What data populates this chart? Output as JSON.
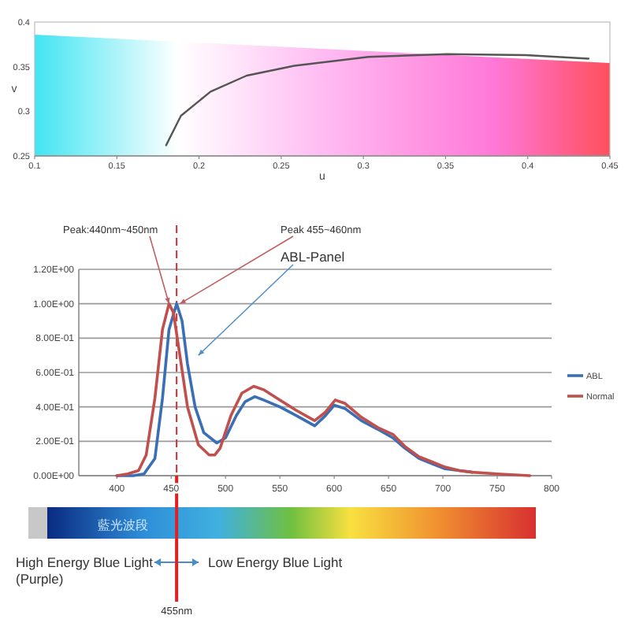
{
  "chart_data": [
    {
      "type": "line",
      "xlabel": "u",
      "ylabel": "v",
      "xlim": [
        0.1,
        0.45
      ],
      "ylim": [
        0.25,
        0.4
      ],
      "xticks": [
        0.1,
        0.15,
        0.2,
        0.25,
        0.3,
        0.35,
        0.4,
        0.45
      ],
      "yticks": [
        0.25,
        0.3,
        0.35,
        0.4
      ],
      "series": [
        {
          "color": "#555555",
          "x": [
            0.18,
            0.189,
            0.207,
            0.229,
            0.258,
            0.303,
            0.351,
            0.399,
            0.437
          ],
          "values": [
            0.262,
            0.295,
            0.322,
            0.34,
            0.351,
            0.361,
            0.364,
            0.363,
            0.359
          ]
        }
      ]
    },
    {
      "type": "line",
      "xlim": [
        365,
        800
      ],
      "ylim": [
        0,
        1.2
      ],
      "xticks": [
        400,
        450,
        500,
        550,
        600,
        650,
        700,
        750,
        800
      ],
      "yticks": [
        {
          "value": 0,
          "label": "0.00E+00"
        },
        {
          "value": 0.2,
          "label": "2.00E-01"
        },
        {
          "value": 0.4,
          "label": "4.00E-01"
        },
        {
          "value": 0.6,
          "label": "6.00E-01"
        },
        {
          "value": 0.8,
          "label": "8.00E-01"
        },
        {
          "value": 1,
          "label": "1.00E+00"
        },
        {
          "value": 1.2,
          "label": "1.20E+00"
        }
      ],
      "grid": "y",
      "legend": "right",
      "line_style": "solid",
      "ref_lines": [
        {
          "axis": "x",
          "value": 455,
          "color": "#d03030",
          "line_style": "dashed"
        }
      ],
      "annotations": [
        {
          "text": "Peak:440nm~450nm",
          "x": 448,
          "y": 1.0
        },
        {
          "text": "Peak 455~460nm",
          "x": 458,
          "y": 1.0
        },
        {
          "text": "ABL-Panel",
          "x": 475,
          "y": 0.7
        },
        "藍光波段",
        "High Energy Blue Light\n(Purple)",
        "Low Energy Blue Light",
        "455nm"
      ],
      "series": [
        {
          "name": "ABL",
          "color": "#3a6fb5",
          "x": [
            400,
            415,
            425,
            435,
            442,
            448,
            455,
            460,
            465,
            472,
            480,
            492,
            500,
            510,
            518,
            527,
            535,
            550,
            565,
            582,
            592,
            600,
            610,
            625,
            640,
            654,
            665,
            678,
            690,
            702,
            715,
            727
          ],
          "values": [
            0,
            0,
            0.01,
            0.1,
            0.45,
            0.85,
            1.0,
            0.9,
            0.65,
            0.4,
            0.25,
            0.19,
            0.22,
            0.35,
            0.43,
            0.46,
            0.44,
            0.4,
            0.35,
            0.29,
            0.35,
            0.41,
            0.39,
            0.32,
            0.27,
            0.22,
            0.16,
            0.1,
            0.07,
            0.04,
            0.03,
            0.02
          ]
        },
        {
          "name": "Normal",
          "color": "#c0504d",
          "x": [
            400,
            410,
            420,
            427,
            435,
            442,
            448,
            452,
            458,
            465,
            475,
            485,
            490,
            495,
            505,
            515,
            526,
            535,
            550,
            565,
            582,
            592,
            601,
            610,
            625,
            640,
            654,
            665,
            678,
            690,
            702,
            715,
            727,
            750,
            780
          ],
          "values": [
            0,
            0.01,
            0.03,
            0.12,
            0.45,
            0.85,
            1.0,
            0.95,
            0.7,
            0.4,
            0.18,
            0.12,
            0.12,
            0.16,
            0.35,
            0.48,
            0.52,
            0.5,
            0.44,
            0.38,
            0.32,
            0.37,
            0.44,
            0.42,
            0.34,
            0.28,
            0.24,
            0.17,
            0.11,
            0.08,
            0.05,
            0.03,
            0.02,
            0.01,
            0
          ]
        }
      ]
    }
  ]
}
